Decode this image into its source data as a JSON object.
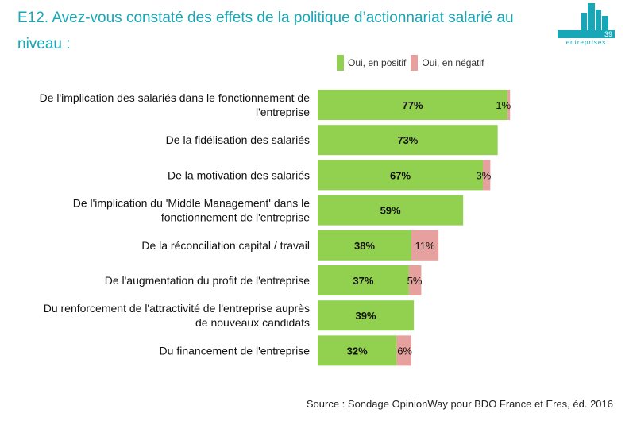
{
  "title": "E12. Avez-vous constaté des effets de la politique d’actionnariat salarié au niveau :",
  "logo": {
    "number": "39",
    "word": "entreprises"
  },
  "source": "Source : Sondage OpinionWay pour BDO France et Eres, éd. 2016",
  "colors": {
    "positive": "#92d050",
    "negative": "#e6a09d",
    "accent": "#17a7b7"
  },
  "chart_data": {
    "type": "bar",
    "orientation": "horizontal",
    "stacked": true,
    "legend_position": "top-right",
    "grid": false,
    "xlim": [
      0,
      100
    ],
    "categories": [
      "De l'implication des salariés dans le fonctionnement de l'entreprise",
      "De la fidélisation des salariés",
      "De la motivation des salariés",
      "De l'implication du 'Middle Management' dans le fonctionnement de l'entreprise",
      "De la réconciliation capital / travail",
      "De l'augmentation du profit de l'entreprise",
      "Du renforcement de l'attractivité de l'entreprise auprès de nouveaux candidats",
      "Du financement de l'entreprise"
    ],
    "category_lines": [
      [
        "De l'implication des salariés dans le fonctionnement de",
        "l'entreprise"
      ],
      [
        "De la fidélisation des salariés"
      ],
      [
        "De la motivation des salariés"
      ],
      [
        "De l'implication du 'Middle Management' dans le",
        "fonctionnement de l'entreprise"
      ],
      [
        "De la réconciliation capital / travail"
      ],
      [
        "De l'augmentation du profit de l'entreprise"
      ],
      [
        "Du renforcement de l'attractivité de l'entreprise auprès",
        "de nouveaux candidats"
      ],
      [
        "Du financement de l'entreprise"
      ]
    ],
    "series": [
      {
        "name": "Oui, en positif",
        "values": [
          77,
          73,
          67,
          59,
          38,
          37,
          39,
          32
        ],
        "labels": [
          "77%",
          "73%",
          "67%",
          "59%",
          "38%",
          "37%",
          "39%",
          "32%"
        ]
      },
      {
        "name": "Oui, en négatif",
        "values": [
          1,
          0,
          3,
          0,
          11,
          5,
          0,
          6
        ],
        "labels": [
          "1%",
          "",
          "3%",
          "",
          "11%",
          "5%",
          "",
          "6%"
        ]
      }
    ]
  }
}
